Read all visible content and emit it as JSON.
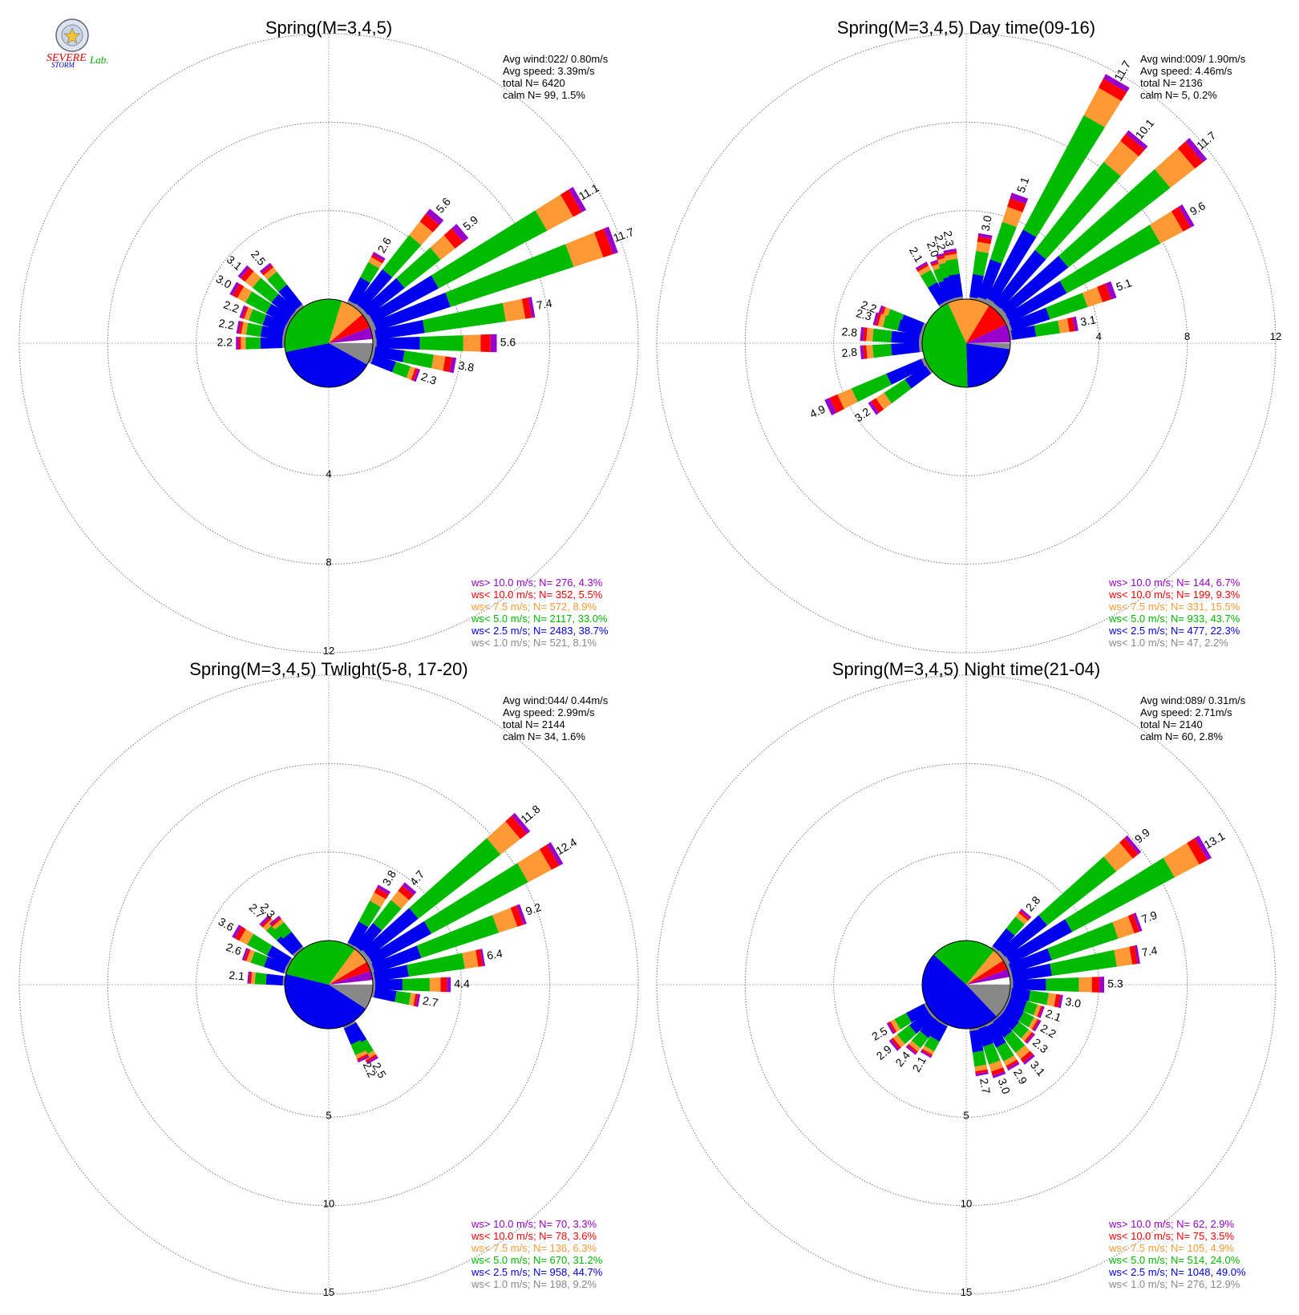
{
  "logo": {
    "line1": "SEVERE",
    "line2": "STORM",
    "line3": "Lab."
  },
  "colors": {
    "ws_gt10": "#9900cc",
    "ws_lt10": "#ff0000",
    "ws_lt7_5": "#ff9933",
    "ws_lt5": "#00bb00",
    "ws_lt2_5": "#0000ee",
    "ws_lt1": "#888888"
  },
  "chart_data": [
    {
      "type": "windrose",
      "title": "Spring(M=3,4,5)",
      "stats": [
        "Avg wind:022/ 0.80m/s",
        "Avg speed: 3.39m/s",
        "total N=      6420",
        "calm N=     99,   1.5%"
      ],
      "rings": [
        4,
        8,
        12
      ],
      "ring_labels": [
        "4",
        "8",
        "12"
      ],
      "ring_label_side": "bottom",
      "center_pct": [
        {
          "bin": "ws_lt1",
          "pct": 8.1
        },
        {
          "bin": "ws_lt2_5",
          "pct": 38.7
        },
        {
          "bin": "ws_lt5",
          "pct": 33.0
        },
        {
          "bin": "ws_lt7_5",
          "pct": 8.9
        },
        {
          "bin": "ws_lt10",
          "pct": 5.5
        },
        {
          "bin": "ws_gt10",
          "pct": 4.3
        }
      ],
      "center_direction": "clockwise-from-east",
      "spokes": [
        {
          "dir": 30,
          "total": 2.6,
          "label": "2.6"
        },
        {
          "dir": 40,
          "total": 5.6,
          "label": "5.6"
        },
        {
          "dir": 50,
          "total": 5.9,
          "label": "5.9"
        },
        {
          "dir": 60,
          "total": 11.1,
          "label": "11.1"
        },
        {
          "dir": 70,
          "total": 11.7,
          "label": "11.7"
        },
        {
          "dir": 80,
          "total": 7.4,
          "label": "7.4"
        },
        {
          "dir": 90,
          "total": 5.6,
          "label": "5.6"
        },
        {
          "dir": 100,
          "total": 3.8,
          "label": "3.8"
        },
        {
          "dir": 110,
          "total": 2.3,
          "label": "2.3"
        },
        {
          "dir": 270,
          "total": 2.2,
          "label": "2.2"
        },
        {
          "dir": 280,
          "total": 2.2,
          "label": "2.2"
        },
        {
          "dir": 290,
          "total": 2.2,
          "label": "2.2"
        },
        {
          "dir": 300,
          "total": 3.0,
          "label": "3.0"
        },
        {
          "dir": 310,
          "total": 3.1,
          "label": "3.1"
        },
        {
          "dir": 320,
          "total": 2.5,
          "label": "2.5"
        }
      ],
      "legend": [
        {
          "bin": "ws_gt10",
          "text": "ws> 10.0 m/s; N=   276,  4.3%"
        },
        {
          "bin": "ws_lt10",
          "text": "ws< 10.0 m/s; N=   352,  5.5%"
        },
        {
          "bin": "ws_lt7_5",
          "text": "ws<  7.5 m/s; N=   572,  8.9%"
        },
        {
          "bin": "ws_lt5",
          "text": "ws<  5.0 m/s; N=  2117, 33.0%"
        },
        {
          "bin": "ws_lt2_5",
          "text": "ws<  2.5 m/s; N=  2483, 38.7%"
        },
        {
          "bin": "ws_lt1",
          "text": "ws<  1.0 m/s; N=   521,  8.1%"
        }
      ]
    },
    {
      "type": "windrose",
      "title": "Spring(M=3,4,5) Day time(09-16)",
      "stats": [
        "Avg wind:009/ 1.90m/s",
        "Avg speed: 4.46m/s",
        "total N=      2136",
        "calm N=      5,   0.2%"
      ],
      "rings": [
        4,
        8,
        12
      ],
      "ring_labels": [
        "4",
        "8",
        "12"
      ],
      "ring_label_side": "right",
      "center_pct": [
        {
          "bin": "ws_lt1",
          "pct": 2.2
        },
        {
          "bin": "ws_lt2_5",
          "pct": 22.3
        },
        {
          "bin": "ws_lt5",
          "pct": 43.7
        },
        {
          "bin": "ws_lt7_5",
          "pct": 15.5
        },
        {
          "bin": "ws_lt10",
          "pct": 9.3
        },
        {
          "bin": "ws_gt10",
          "pct": 6.7
        }
      ],
      "center_direction": "clockwise-from-east",
      "spokes": [
        {
          "dir": 330,
          "total": 2.1,
          "label": "2.1"
        },
        {
          "dir": 340,
          "total": 2.0,
          "label": "2.0"
        },
        {
          "dir": 345,
          "total": 2.2,
          "label": "2.2"
        },
        {
          "dir": 350,
          "total": 2.3,
          "label": "2.3"
        },
        {
          "dir": 10,
          "total": 3.0,
          "label": "3.0"
        },
        {
          "dir": 20,
          "total": 5.1,
          "label": "5.1"
        },
        {
          "dir": 30,
          "total": 11.7,
          "label": "11.7"
        },
        {
          "dir": 40,
          "total": 10.1,
          "label": "10.1"
        },
        {
          "dir": 50,
          "total": 11.7,
          "label": "11.7"
        },
        {
          "dir": 60,
          "total": 9.6,
          "label": "9.6"
        },
        {
          "dir": 70,
          "total": 5.1,
          "label": "5.1"
        },
        {
          "dir": 80,
          "total": 3.1,
          "label": "3.1"
        },
        {
          "dir": 290,
          "total": 2.2,
          "label": "2.2"
        },
        {
          "dir": 285,
          "total": 2.3,
          "label": "2.3"
        },
        {
          "dir": 275,
          "total": 2.8,
          "label": "2.8"
        },
        {
          "dir": 265,
          "total": 2.8,
          "label": "2.8"
        },
        {
          "dir": 245,
          "total": 4.9,
          "label": "4.9"
        },
        {
          "dir": 235,
          "total": 3.2,
          "label": "3.2"
        }
      ],
      "legend": [
        {
          "bin": "ws_gt10",
          "text": "ws> 10.0 m/s; N=   144,  6.7%"
        },
        {
          "bin": "ws_lt10",
          "text": "ws< 10.0 m/s; N=   199,  9.3%"
        },
        {
          "bin": "ws_lt7_5",
          "text": "ws<  7.5 m/s; N=   331, 15.5%"
        },
        {
          "bin": "ws_lt5",
          "text": "ws<  5.0 m/s; N=   933, 43.7%"
        },
        {
          "bin": "ws_lt2_5",
          "text": "ws<  2.5 m/s; N=   477, 22.3%"
        },
        {
          "bin": "ws_lt1",
          "text": "ws<  1.0 m/s; N=    47,  2.2%"
        }
      ]
    },
    {
      "type": "windrose",
      "title": "Spring(M=3,4,5) Twlight(5-8, 17-20)",
      "stats": [
        "Avg wind:044/ 0.44m/s",
        "Avg speed: 2.99m/s",
        "total N=      2144",
        "calm N=     34,   1.6%"
      ],
      "rings": [
        5,
        10,
        15
      ],
      "ring_labels": [
        "5",
        "10",
        "15"
      ],
      "ring_label_side": "bottom",
      "center_pct": [
        {
          "bin": "ws_lt1",
          "pct": 9.2
        },
        {
          "bin": "ws_lt2_5",
          "pct": 44.7
        },
        {
          "bin": "ws_lt5",
          "pct": 31.2
        },
        {
          "bin": "ws_lt7_5",
          "pct": 6.3
        },
        {
          "bin": "ws_lt10",
          "pct": 3.6
        },
        {
          "bin": "ws_gt10",
          "pct": 3.3
        }
      ],
      "center_direction": "clockwise-from-east",
      "spokes": [
        {
          "dir": 30,
          "total": 3.8,
          "label": "3.8"
        },
        {
          "dir": 40,
          "total": 4.7,
          "label": "4.7"
        },
        {
          "dir": 50,
          "total": 11.8,
          "label": "11.8"
        },
        {
          "dir": 60,
          "total": 12.4,
          "label": "12.4"
        },
        {
          "dir": 70,
          "total": 9.2,
          "label": "9.2"
        },
        {
          "dir": 80,
          "total": 6.4,
          "label": "6.4"
        },
        {
          "dir": 90,
          "total": 4.4,
          "label": "4.4"
        },
        {
          "dir": 100,
          "total": 2.7,
          "label": "2.7"
        },
        {
          "dir": 150,
          "total": 2.5,
          "label": "2.5"
        },
        {
          "dir": 155,
          "total": 2.2,
          "label": "2.2"
        },
        {
          "dir": 275,
          "total": 2.1,
          "label": "2.1"
        },
        {
          "dir": 290,
          "total": 2.6,
          "label": "2.6"
        },
        {
          "dir": 300,
          "total": 3.6,
          "label": "3.6"
        },
        {
          "dir": 315,
          "total": 2.7,
          "label": "2.7"
        },
        {
          "dir": 320,
          "total": 2.3,
          "label": "2.3"
        }
      ],
      "legend": [
        {
          "bin": "ws_gt10",
          "text": "ws> 10.0 m/s; N=    70,  3.3%"
        },
        {
          "bin": "ws_lt10",
          "text": "ws< 10.0 m/s; N=    78,  3.6%"
        },
        {
          "bin": "ws_lt7_5",
          "text": "ws<  7.5 m/s; N=   136,  6.3%"
        },
        {
          "bin": "ws_lt5",
          "text": "ws<  5.0 m/s; N=   670, 31.2%"
        },
        {
          "bin": "ws_lt2_5",
          "text": "ws<  2.5 m/s; N=   958, 44.7%"
        },
        {
          "bin": "ws_lt1",
          "text": "ws<  1.0 m/s; N=   198,  9.2%"
        }
      ]
    },
    {
      "type": "windrose",
      "title": "Spring(M=3,4,5) Night time(21-04)",
      "stats": [
        "Avg wind:089/ 0.31m/s",
        "Avg speed: 2.71m/s",
        "total N=      2140",
        "calm N=     60,   2.8%"
      ],
      "rings": [
        5,
        10,
        15
      ],
      "ring_labels": [
        "5",
        "10",
        "15"
      ],
      "ring_label_side": "bottom",
      "center_pct": [
        {
          "bin": "ws_lt1",
          "pct": 12.9
        },
        {
          "bin": "ws_lt2_5",
          "pct": 49.0
        },
        {
          "bin": "ws_lt5",
          "pct": 24.0
        },
        {
          "bin": "ws_lt7_5",
          "pct": 4.9
        },
        {
          "bin": "ws_lt10",
          "pct": 3.5
        },
        {
          "bin": "ws_gt10",
          "pct": 2.9
        }
      ],
      "center_direction": "clockwise-from-east",
      "spokes": [
        {
          "dir": 40,
          "total": 2.8,
          "label": "2.8"
        },
        {
          "dir": 50,
          "total": 9.9,
          "label": "9.9"
        },
        {
          "dir": 60,
          "total": 13.1,
          "label": "13.1"
        },
        {
          "dir": 70,
          "total": 7.9,
          "label": "7.9"
        },
        {
          "dir": 80,
          "total": 7.4,
          "label": "7.4"
        },
        {
          "dir": 90,
          "total": 5.3,
          "label": "5.3"
        },
        {
          "dir": 100,
          "total": 3.0,
          "label": "3.0"
        },
        {
          "dir": 110,
          "total": 2.1,
          "label": "2.1"
        },
        {
          "dir": 120,
          "total": 2.2,
          "label": "2.2"
        },
        {
          "dir": 130,
          "total": 2.3,
          "label": "2.3"
        },
        {
          "dir": 140,
          "total": 3.1,
          "label": "3.1"
        },
        {
          "dir": 150,
          "total": 2.9,
          "label": "2.9"
        },
        {
          "dir": 160,
          "total": 3.0,
          "label": "3.0"
        },
        {
          "dir": 170,
          "total": 2.7,
          "label": "2.7"
        },
        {
          "dir": 210,
          "total": 2.1,
          "label": "2.1"
        },
        {
          "dir": 220,
          "total": 2.4,
          "label": "2.4"
        },
        {
          "dir": 230,
          "total": 2.9,
          "label": "2.9"
        },
        {
          "dir": 240,
          "total": 2.5,
          "label": "2.5"
        }
      ],
      "legend": [
        {
          "bin": "ws_gt10",
          "text": "ws> 10.0 m/s; N=    62,  2.9%"
        },
        {
          "bin": "ws_lt10",
          "text": "ws< 10.0 m/s; N=    75,  3.5%"
        },
        {
          "bin": "ws_lt7_5",
          "text": "ws<  7.5 m/s; N=   105,  4.9%"
        },
        {
          "bin": "ws_lt5",
          "text": "ws<  5.0 m/s; N=   514, 24.0%"
        },
        {
          "bin": "ws_lt2_5",
          "text": "ws<  2.5 m/s; N=  1048, 49.0%"
        },
        {
          "bin": "ws_lt1",
          "text": "ws<  1.0 m/s; N=   276, 12.9%"
        }
      ]
    }
  ]
}
